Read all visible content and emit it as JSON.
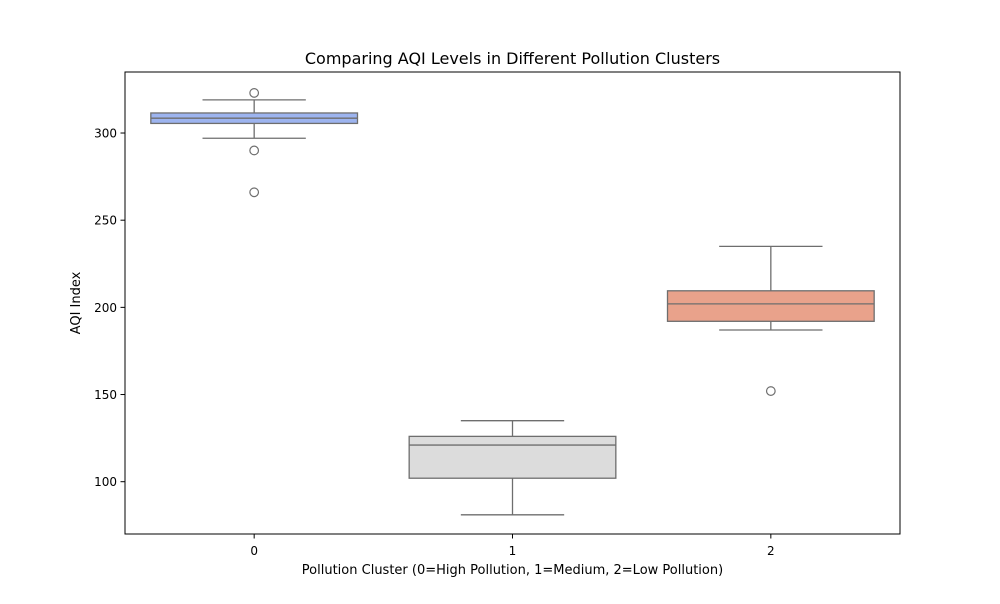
{
  "chart_data": {
    "type": "box",
    "title": "Comparing AQI Levels in Different Pollution Clusters",
    "xlabel": "Pollution Cluster (0=High Pollution, 1=Medium, 2=Low Pollution)",
    "ylabel": "AQI Index",
    "categories": [
      "0",
      "1",
      "2"
    ],
    "ylim": [
      70,
      335
    ],
    "yticks": [
      100,
      150,
      200,
      250,
      300
    ],
    "grid": false,
    "colors": {
      "box_fills": [
        "#9db4ef",
        "#dcdcdc",
        "#e9a28b"
      ],
      "line": "#6e6e6e",
      "frame": "#000000"
    },
    "boxes": [
      {
        "category": "0",
        "whisker_low": 297,
        "q1": 305.5,
        "median": 308.5,
        "q3": 311.5,
        "whisker_high": 319,
        "outliers": [
          323,
          290,
          266
        ]
      },
      {
        "category": "1",
        "whisker_low": 81,
        "q1": 102,
        "median": 121,
        "q3": 126,
        "whisker_high": 135,
        "outliers": []
      },
      {
        "category": "2",
        "whisker_low": 187,
        "q1": 192,
        "median": 202,
        "q3": 209.5,
        "whisker_high": 235,
        "outliers": [
          152
        ]
      }
    ]
  }
}
